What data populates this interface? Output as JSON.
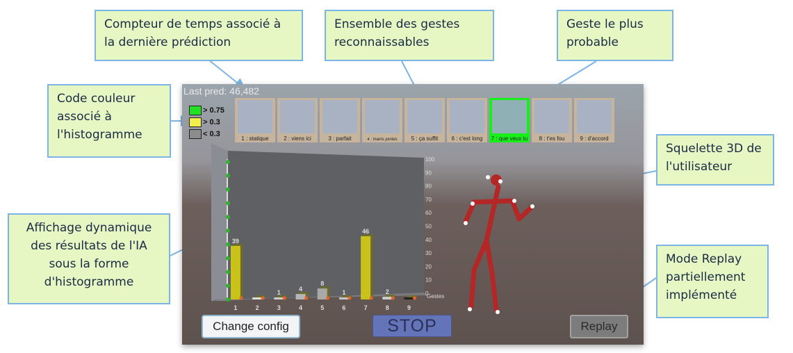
{
  "callouts": {
    "timer": "Compteur de temps associé à la dernière prédiction",
    "gesture_set": "Ensemble des gestes reconnaissables",
    "likely_gesture": "Geste le plus probable",
    "color_code": "Code couleur associé à l'histogramme",
    "skeleton": "Squelette 3D de l'utilisateur",
    "dynamic_display": "Affichage dynamique des résultats de l'IA sous la forme d'histogramme",
    "replay_mode": "Mode Replay partiellement implémenté"
  },
  "app": {
    "last_pred": "Last pred: 46,482",
    "legend": [
      {
        "label": "> 0.75",
        "color": "#22e022"
      },
      {
        "label": "> 0.3",
        "color": "#f2ee4a"
      },
      {
        "label": "< 0.3",
        "color": "#8c8c8c"
      }
    ],
    "gestures": [
      {
        "label": "1 : statique",
        "active": false
      },
      {
        "label": "2 : viens ici",
        "active": false
      },
      {
        "label": "3 : parfait",
        "active": false
      },
      {
        "label": "4 : mains jointes",
        "active": false
      },
      {
        "label": "5 : ça suffit",
        "active": false
      },
      {
        "label": "6 : c'est long",
        "active": false
      },
      {
        "label": "7 : que veux tu",
        "active": true
      },
      {
        "label": "8 : t'es fou",
        "active": false
      },
      {
        "label": "9 : d'accord",
        "active": false
      }
    ],
    "buttons": {
      "change_config": "Change config",
      "stop": "STOP",
      "replay": "Replay"
    }
  },
  "chart_data": {
    "type": "bar",
    "categories": [
      "1",
      "2",
      "3",
      "4",
      "5",
      "6",
      "7",
      "8",
      "9"
    ],
    "values": [
      39,
      0,
      1,
      4,
      8,
      1,
      46,
      2,
      0
    ],
    "data_labels": [
      "39",
      "",
      "1",
      "4",
      "8",
      "1",
      "46",
      "2",
      ""
    ],
    "bar_colors": [
      "#c9c21a",
      "#dddddd",
      "#cccccc",
      "#b5b5b5",
      "#a9a9a9",
      "#c5c5c5",
      "#c9c21a",
      "#cccccc",
      "#222222"
    ],
    "yticks": [
      "0",
      "10",
      "20",
      "30",
      "40",
      "50",
      "60",
      "70",
      "80",
      "90",
      "100"
    ],
    "ylim": [
      0,
      100
    ],
    "xlabel": "Gestes"
  }
}
